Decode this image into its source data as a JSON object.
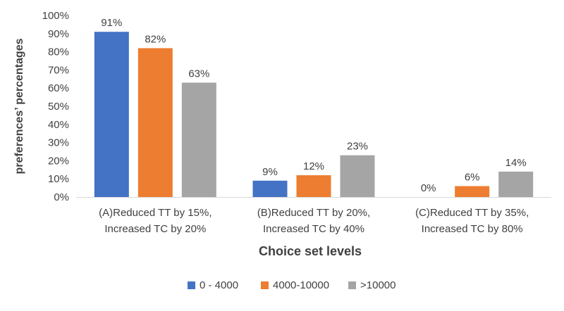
{
  "chart_data": {
    "type": "bar",
    "title": "",
    "xlabel": "Choice set levels",
    "ylabel": "preferences’ percentages",
    "ylim": [
      0,
      100
    ],
    "ytick_step": 10,
    "y_tick_format": "{v}%",
    "grid": false,
    "legend_position": "bottom",
    "categories": [
      [
        "(A)Reduced TT by 15%,",
        "Increased TC by 20%"
      ],
      [
        "(B)Reduced TT by 20%,",
        "Increased TC by 40%"
      ],
      [
        "(C)Reduced TT by 35%,",
        "Increased TC by 80%"
      ]
    ],
    "series": [
      {
        "name": "0 - 4000",
        "color": "#4472C4",
        "values": [
          91,
          9,
          0
        ]
      },
      {
        "name": "4000-10000",
        "color": "#ED7D31",
        "values": [
          82,
          12,
          6
        ]
      },
      {
        "name": ">10000",
        "color": "#A5A5A5",
        "values": [
          63,
          23,
          14
        ]
      }
    ]
  }
}
